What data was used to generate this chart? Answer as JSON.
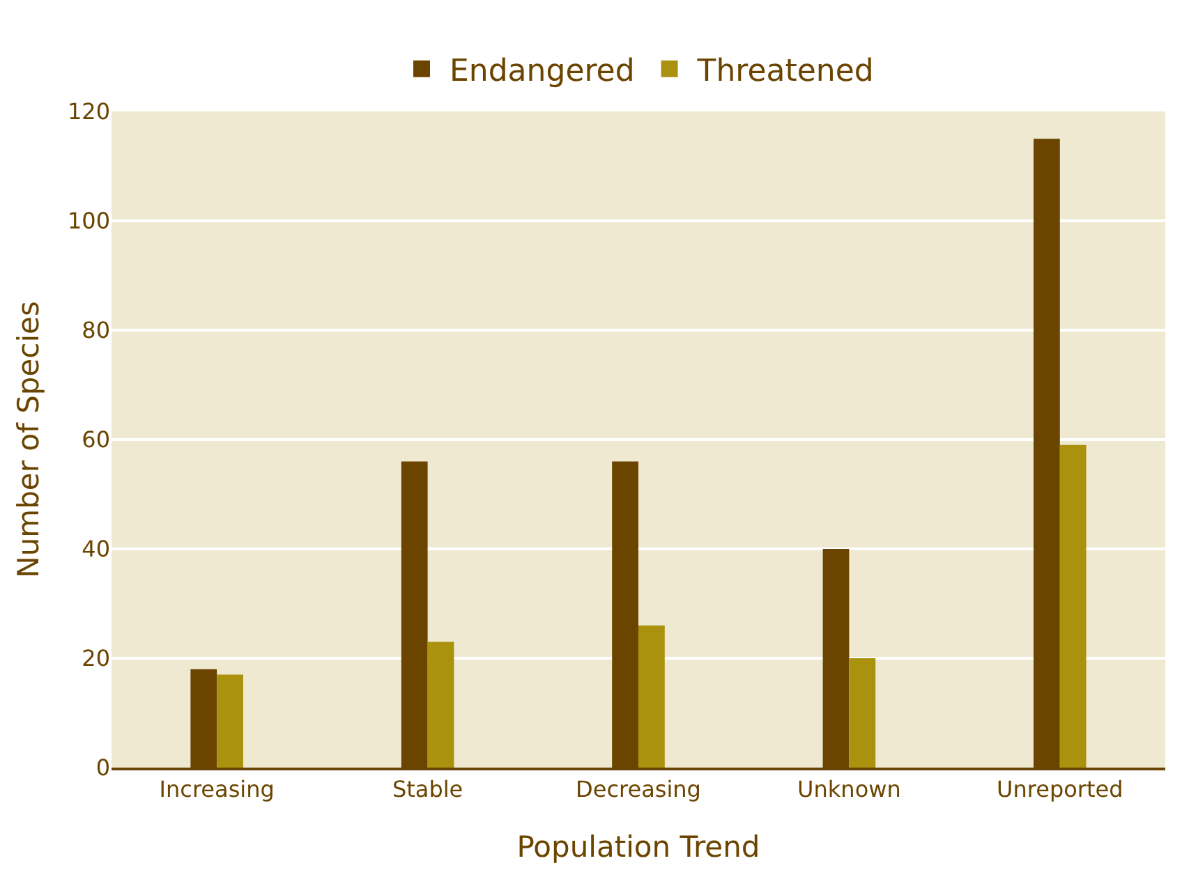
{
  "chart_data": {
    "type": "bar",
    "xlabel": "Population Trend",
    "ylabel": "Number of Species",
    "categories": [
      "Increasing",
      "Stable",
      "Decreasing",
      "Unknown",
      "Unreported"
    ],
    "series": [
      {
        "name": "Endangered",
        "color": "#6b4500",
        "values": [
          18,
          56,
          56,
          40,
          115
        ]
      },
      {
        "name": "Threatened",
        "color": "#aa920e",
        "values": [
          17,
          23,
          26,
          20,
          59
        ]
      }
    ],
    "ylim": [
      0,
      120
    ],
    "yticks": [
      0,
      20,
      40,
      60,
      80,
      100,
      120
    ],
    "grid": "y",
    "legend": "top"
  }
}
